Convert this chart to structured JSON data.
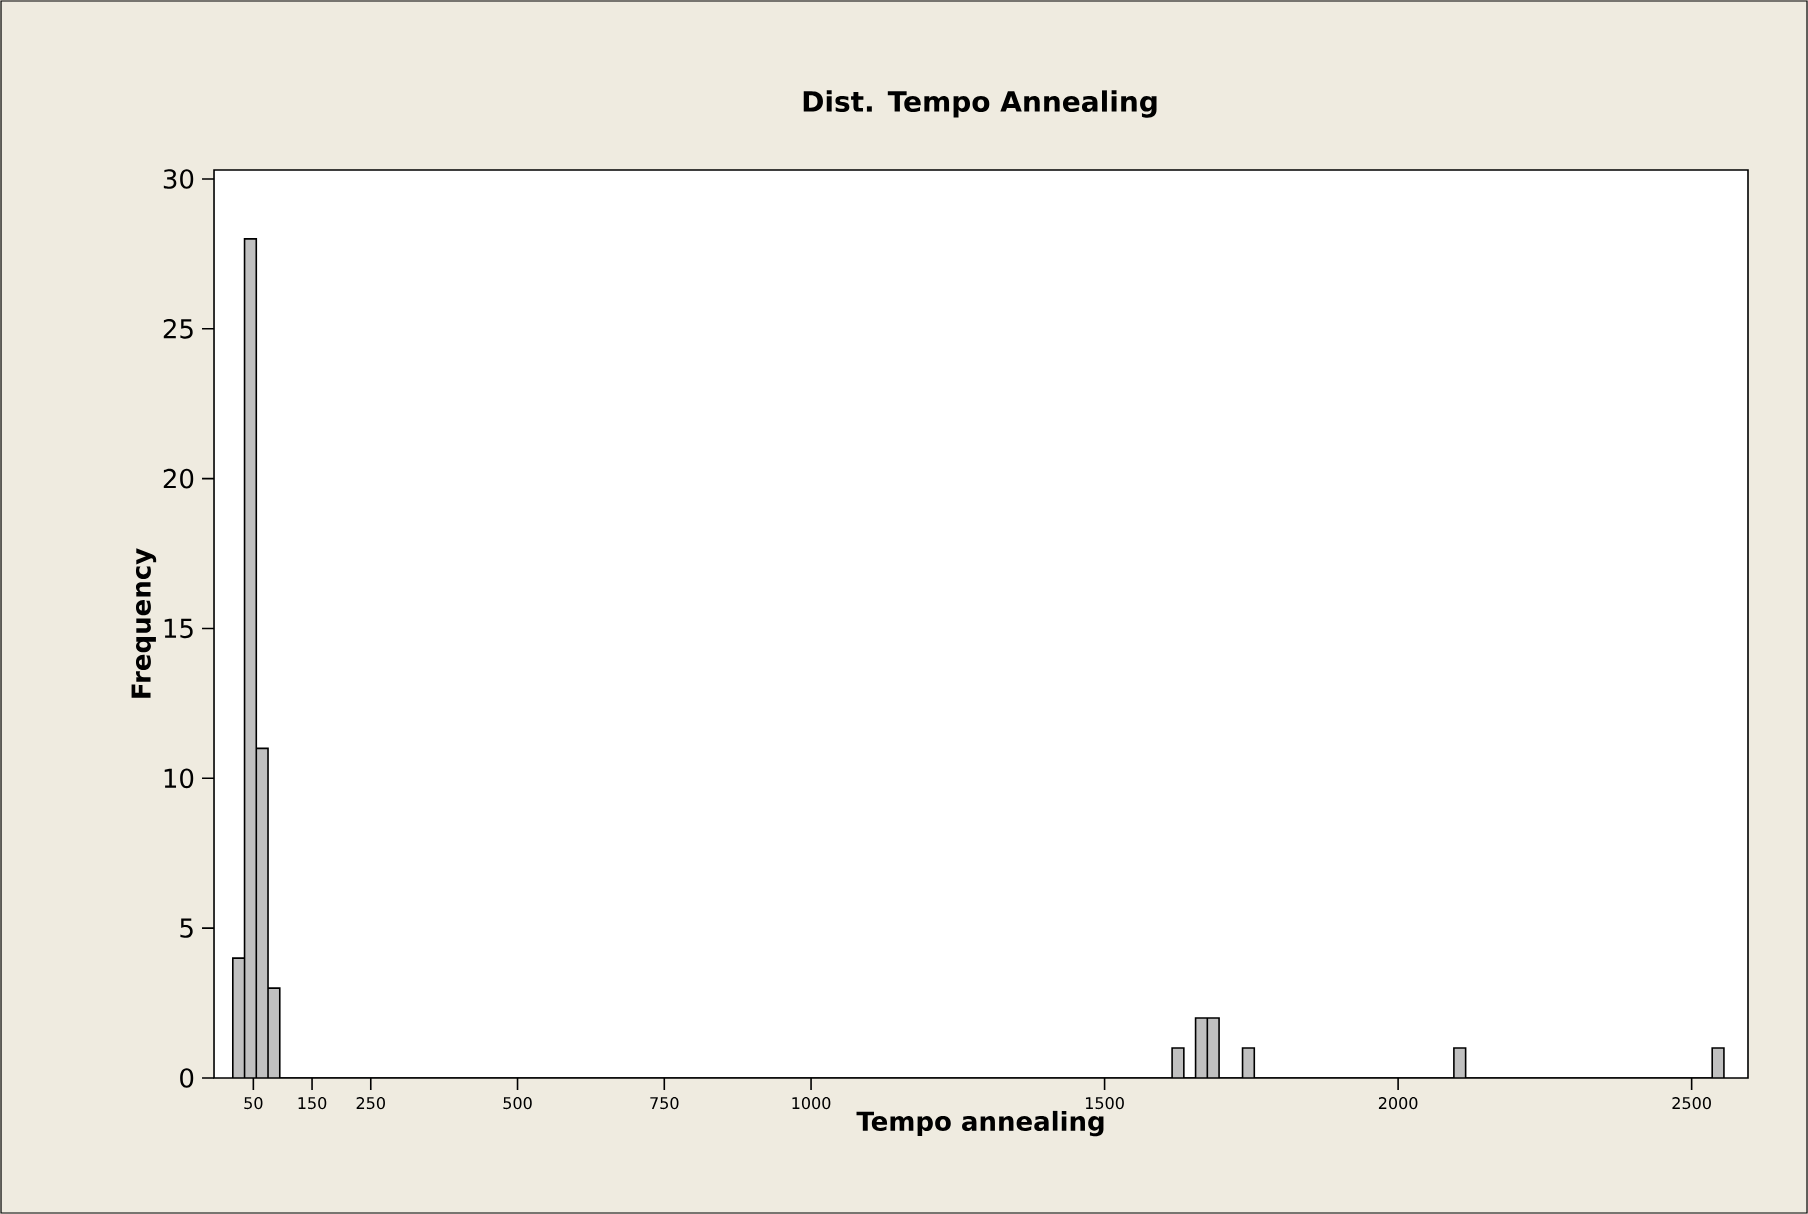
{
  "chart_data": {
    "type": "histogram",
    "title": "Dist. Tempo Annealing",
    "xlabel": "Tempo annealing",
    "ylabel": "Frequency",
    "bins": [
      15,
      35,
      55,
      75,
      95,
      115,
      135,
      155,
      175,
      195,
      215,
      235,
      255,
      275,
      295,
      315,
      335,
      355,
      375,
      395,
      415,
      435,
      455,
      475,
      495,
      515,
      535,
      555,
      575,
      595,
      615,
      635,
      655,
      675,
      695,
      715,
      735,
      755,
      775,
      795,
      815,
      835,
      855,
      875,
      895,
      915,
      935,
      955,
      975,
      995,
      1015,
      1035,
      1055,
      1075,
      1095,
      1115,
      1135,
      1155,
      1175,
      1195,
      1215,
      1235,
      1255,
      1275,
      1295,
      1315,
      1335,
      1355,
      1375,
      1395,
      1415,
      1435,
      1455,
      1475,
      1495,
      1515,
      1535,
      1555,
      1575,
      1595,
      1615,
      1635,
      1655,
      1675,
      1695,
      1715,
      1735,
      1755,
      1775,
      1795,
      1815,
      1835,
      1855,
      1875,
      1895,
      1915,
      1935,
      1955,
      1975,
      1995,
      2015,
      2035,
      2055,
      2075,
      2095,
      2115,
      2135,
      2155,
      2175,
      2195,
      2215,
      2235,
      2255,
      2275,
      2295,
      2315,
      2335,
      2355,
      2375,
      2395,
      2415,
      2435,
      2455,
      2475,
      2495,
      2515,
      2535,
      2555
    ],
    "values": [
      4,
      28,
      11,
      3,
      0,
      0,
      0,
      0,
      0,
      0,
      0,
      0,
      0,
      0,
      0,
      0,
      0,
      0,
      0,
      0,
      0,
      0,
      0,
      0,
      0,
      0,
      0,
      0,
      0,
      0,
      0,
      0,
      0,
      0,
      0,
      0,
      0,
      0,
      0,
      0,
      0,
      0,
      0,
      0,
      0,
      0,
      0,
      0,
      0,
      0,
      0,
      0,
      0,
      0,
      0,
      0,
      0,
      0,
      0,
      0,
      0,
      0,
      0,
      0,
      0,
      0,
      0,
      0,
      0,
      0,
      0,
      0,
      0,
      0,
      0,
      0,
      0,
      0,
      0,
      0,
      1,
      0,
      2,
      2,
      0,
      0,
      1,
      0,
      0,
      0,
      0,
      0,
      0,
      0,
      0,
      0,
      0,
      0,
      0,
      0,
      0,
      0,
      0,
      0,
      1,
      0,
      0,
      0,
      0,
      0,
      0,
      0,
      0,
      0,
      0,
      0,
      0,
      0,
      0,
      0,
      0,
      0,
      0,
      0,
      0,
      0,
      1
    ],
    "color": "#c0c0c0",
    "xlim": [
      -17,
      2596
    ],
    "ylim": [
      0,
      30.3
    ],
    "xticks": [
      50,
      150,
      250,
      500,
      750,
      1000,
      1500,
      2000,
      2500
    ],
    "yticks": [
      0,
      5,
      10,
      15,
      20,
      25,
      30
    ]
  }
}
